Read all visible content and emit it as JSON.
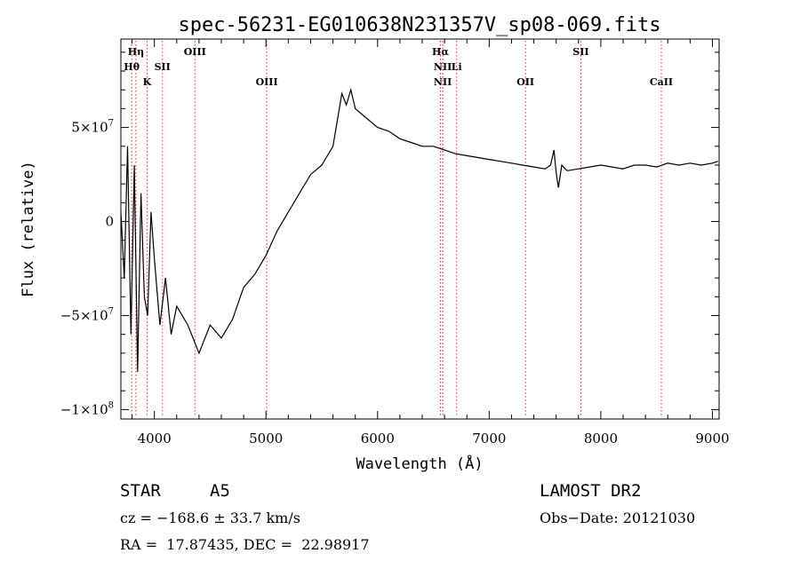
{
  "chart_data": {
    "type": "line",
    "title": "spec-56231-EG010638N231357V_sp08-069.fits",
    "xlabel": "Wavelength (Å)",
    "ylabel": "Flux (relative)",
    "xlim": [
      3700,
      9060
    ],
    "ylim": [
      -105000000,
      97000000
    ],
    "x_ticks": [
      {
        "value": 4000,
        "label": "4000"
      },
      {
        "value": 5000,
        "label": "5000"
      },
      {
        "value": 6000,
        "label": "6000"
      },
      {
        "value": 7000,
        "label": "7000"
      },
      {
        "value": 8000,
        "label": "8000"
      },
      {
        "value": 9000,
        "label": "9000"
      }
    ],
    "y_ticks": [
      {
        "value": 50000000,
        "mantissa": "5×10",
        "exp": "7"
      },
      {
        "value": 0,
        "mantissa": "0",
        "exp": ""
      },
      {
        "value": -50000000,
        "mantissa": "−5×10",
        "exp": "7"
      },
      {
        "value": -100000000,
        "mantissa": "−1×10",
        "exp": "8"
      }
    ],
    "line_color": "#000000",
    "marker_color": "#d62728",
    "markers": [
      {
        "wavelength": 3835,
        "label": "Hη",
        "row": 0
      },
      {
        "wavelength": 3797,
        "label": "Hθ",
        "row": 1
      },
      {
        "wavelength": 3934,
        "label": "K",
        "row": 2
      },
      {
        "wavelength": 4072,
        "label": "SII",
        "row": 1
      },
      {
        "wavelength": 4363,
        "label": "OIII",
        "row": 0
      },
      {
        "wavelength": 5007,
        "label": "OIII",
        "row": 2
      },
      {
        "wavelength": 6563,
        "label": "Hα",
        "row": 0
      },
      {
        "wavelength": 6584,
        "label": "NII",
        "row": 1
      },
      {
        "wavelength": 6584,
        "label": "NII",
        "row": 2
      },
      {
        "wavelength": 6708,
        "label": "Li",
        "row": 1
      },
      {
        "wavelength": 7325,
        "label": "OII",
        "row": 2
      },
      {
        "wavelength": 7821,
        "label": "SII",
        "row": 0
      },
      {
        "wavelength": 8542,
        "label": "CaII",
        "row": 2
      }
    ],
    "series": [
      {
        "x": [
          3700,
          3730,
          3760,
          3790,
          3820,
          3850,
          3880,
          3910,
          3940,
          3970,
          4000,
          4050,
          4100,
          4150,
          4200,
          4300,
          4400,
          4500,
          4600,
          4700,
          4800,
          4900,
          5000,
          5100,
          5200,
          5300,
          5400,
          5500,
          5600,
          5680,
          5720,
          5760,
          5800,
          5900,
          6000,
          6100,
          6200,
          6300,
          6400,
          6500,
          6600,
          6700,
          6800,
          6900,
          7000,
          7100,
          7200,
          7300,
          7400,
          7500,
          7550,
          7580,
          7600,
          7620,
          7650,
          7680,
          7700,
          7800,
          7900,
          8000,
          8100,
          8200,
          8300,
          8400,
          8500,
          8600,
          8700,
          8800,
          8900,
          9000,
          9050
        ],
        "y": [
          5000000,
          -30000000,
          40000000,
          -60000000,
          30000000,
          -80000000,
          15000000,
          -40000000,
          -50000000,
          5000000,
          -20000000,
          -55000000,
          -30000000,
          -60000000,
          -45000000,
          -55000000,
          -70000000,
          -55000000,
          -62000000,
          -52000000,
          -35000000,
          -28000000,
          -18000000,
          -5000000,
          5000000,
          15000000,
          25000000,
          30000000,
          40000000,
          68000000,
          62000000,
          70000000,
          60000000,
          55000000,
          50000000,
          48000000,
          44000000,
          42000000,
          40000000,
          40000000,
          38000000,
          36000000,
          35000000,
          34000000,
          33000000,
          32000000,
          31000000,
          30000000,
          29000000,
          28000000,
          30000000,
          38000000,
          26000000,
          18000000,
          30000000,
          28000000,
          27000000,
          28000000,
          29000000,
          30000000,
          29000000,
          28000000,
          30000000,
          30000000,
          29000000,
          31000000,
          30000000,
          31000000,
          30000000,
          31000000,
          32000000
        ]
      }
    ]
  },
  "footer": {
    "object_class": "STAR",
    "subclass": "A5",
    "survey": "LAMOST DR2",
    "redshift": "cz = −168.6 ± 33.7 km/s",
    "obs_date": "Obs−Date: 20121030",
    "coords": "RA =  17.87435, DEC =  22.98917"
  }
}
